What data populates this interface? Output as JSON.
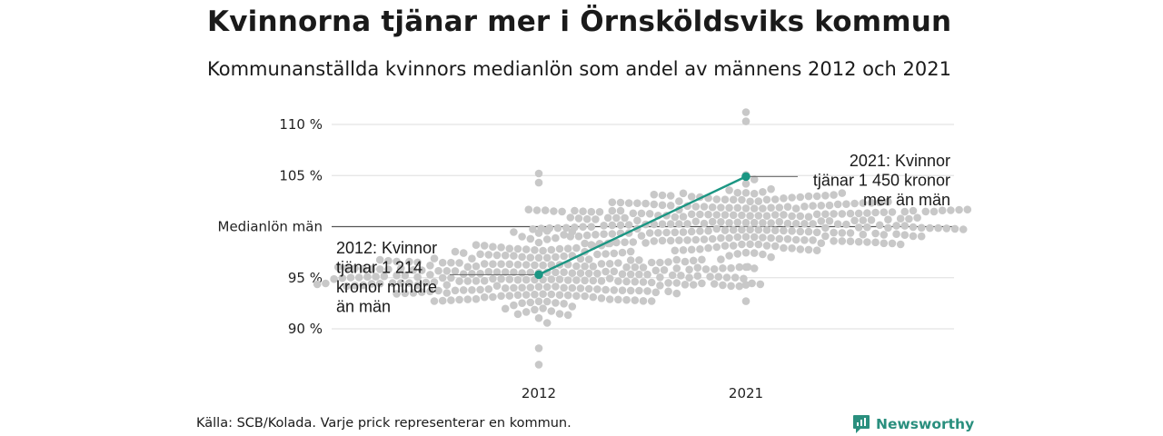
{
  "header": {
    "title": "Kvinnorna tjänar mer i Örnsköldsviks kommun",
    "subtitle": "Kommunanställda kvinnors medianlön som andel av männens 2012 och 2021"
  },
  "footer": {
    "source": "Källa: SCB/Kolada. Varje prick representerar en kommun.",
    "brand": "Newsworthy"
  },
  "colors": {
    "dots": "#c8c8c8",
    "highlight": "#1b9683",
    "reference_line": "#555555",
    "grid": "#dddddd",
    "brand": "#2a8f7e"
  },
  "chart_data": {
    "type": "scatter",
    "subtype": "beeswarm",
    "categories": [
      "2012",
      "2021"
    ],
    "y_ticks": [
      {
        "value": 110,
        "label": "110 %"
      },
      {
        "value": 105,
        "label": "105 %"
      },
      {
        "value": 100,
        "label": "Medianlön män"
      },
      {
        "value": 95,
        "label": "95 %"
      },
      {
        "value": 90,
        "label": "90 %"
      }
    ],
    "ylim": [
      85.5,
      111.5
    ],
    "reference_value": 100,
    "grid": true,
    "distribution": [
      {
        "category": "2012",
        "center": 95.5,
        "min": 86.5,
        "max": 105.2,
        "spread": 2.4
      },
      {
        "category": "2021",
        "center": 100.4,
        "min": 92.7,
        "max": 111.2,
        "spread": 2.3
      }
    ],
    "highlight": {
      "values": [
        {
          "category": "2012",
          "value": 95.3
        },
        {
          "category": "2021",
          "value": 104.9
        }
      ]
    },
    "annotations": [
      {
        "category": "2012",
        "lines": [
          "2012: Kvinnor",
          "tjänar 1 214",
          "kronor mindre",
          "än män"
        ]
      },
      {
        "category": "2021",
        "lines": [
          "2021: Kvinnor",
          "tjänar 1 450 kronor",
          "mer än män"
        ]
      }
    ]
  }
}
